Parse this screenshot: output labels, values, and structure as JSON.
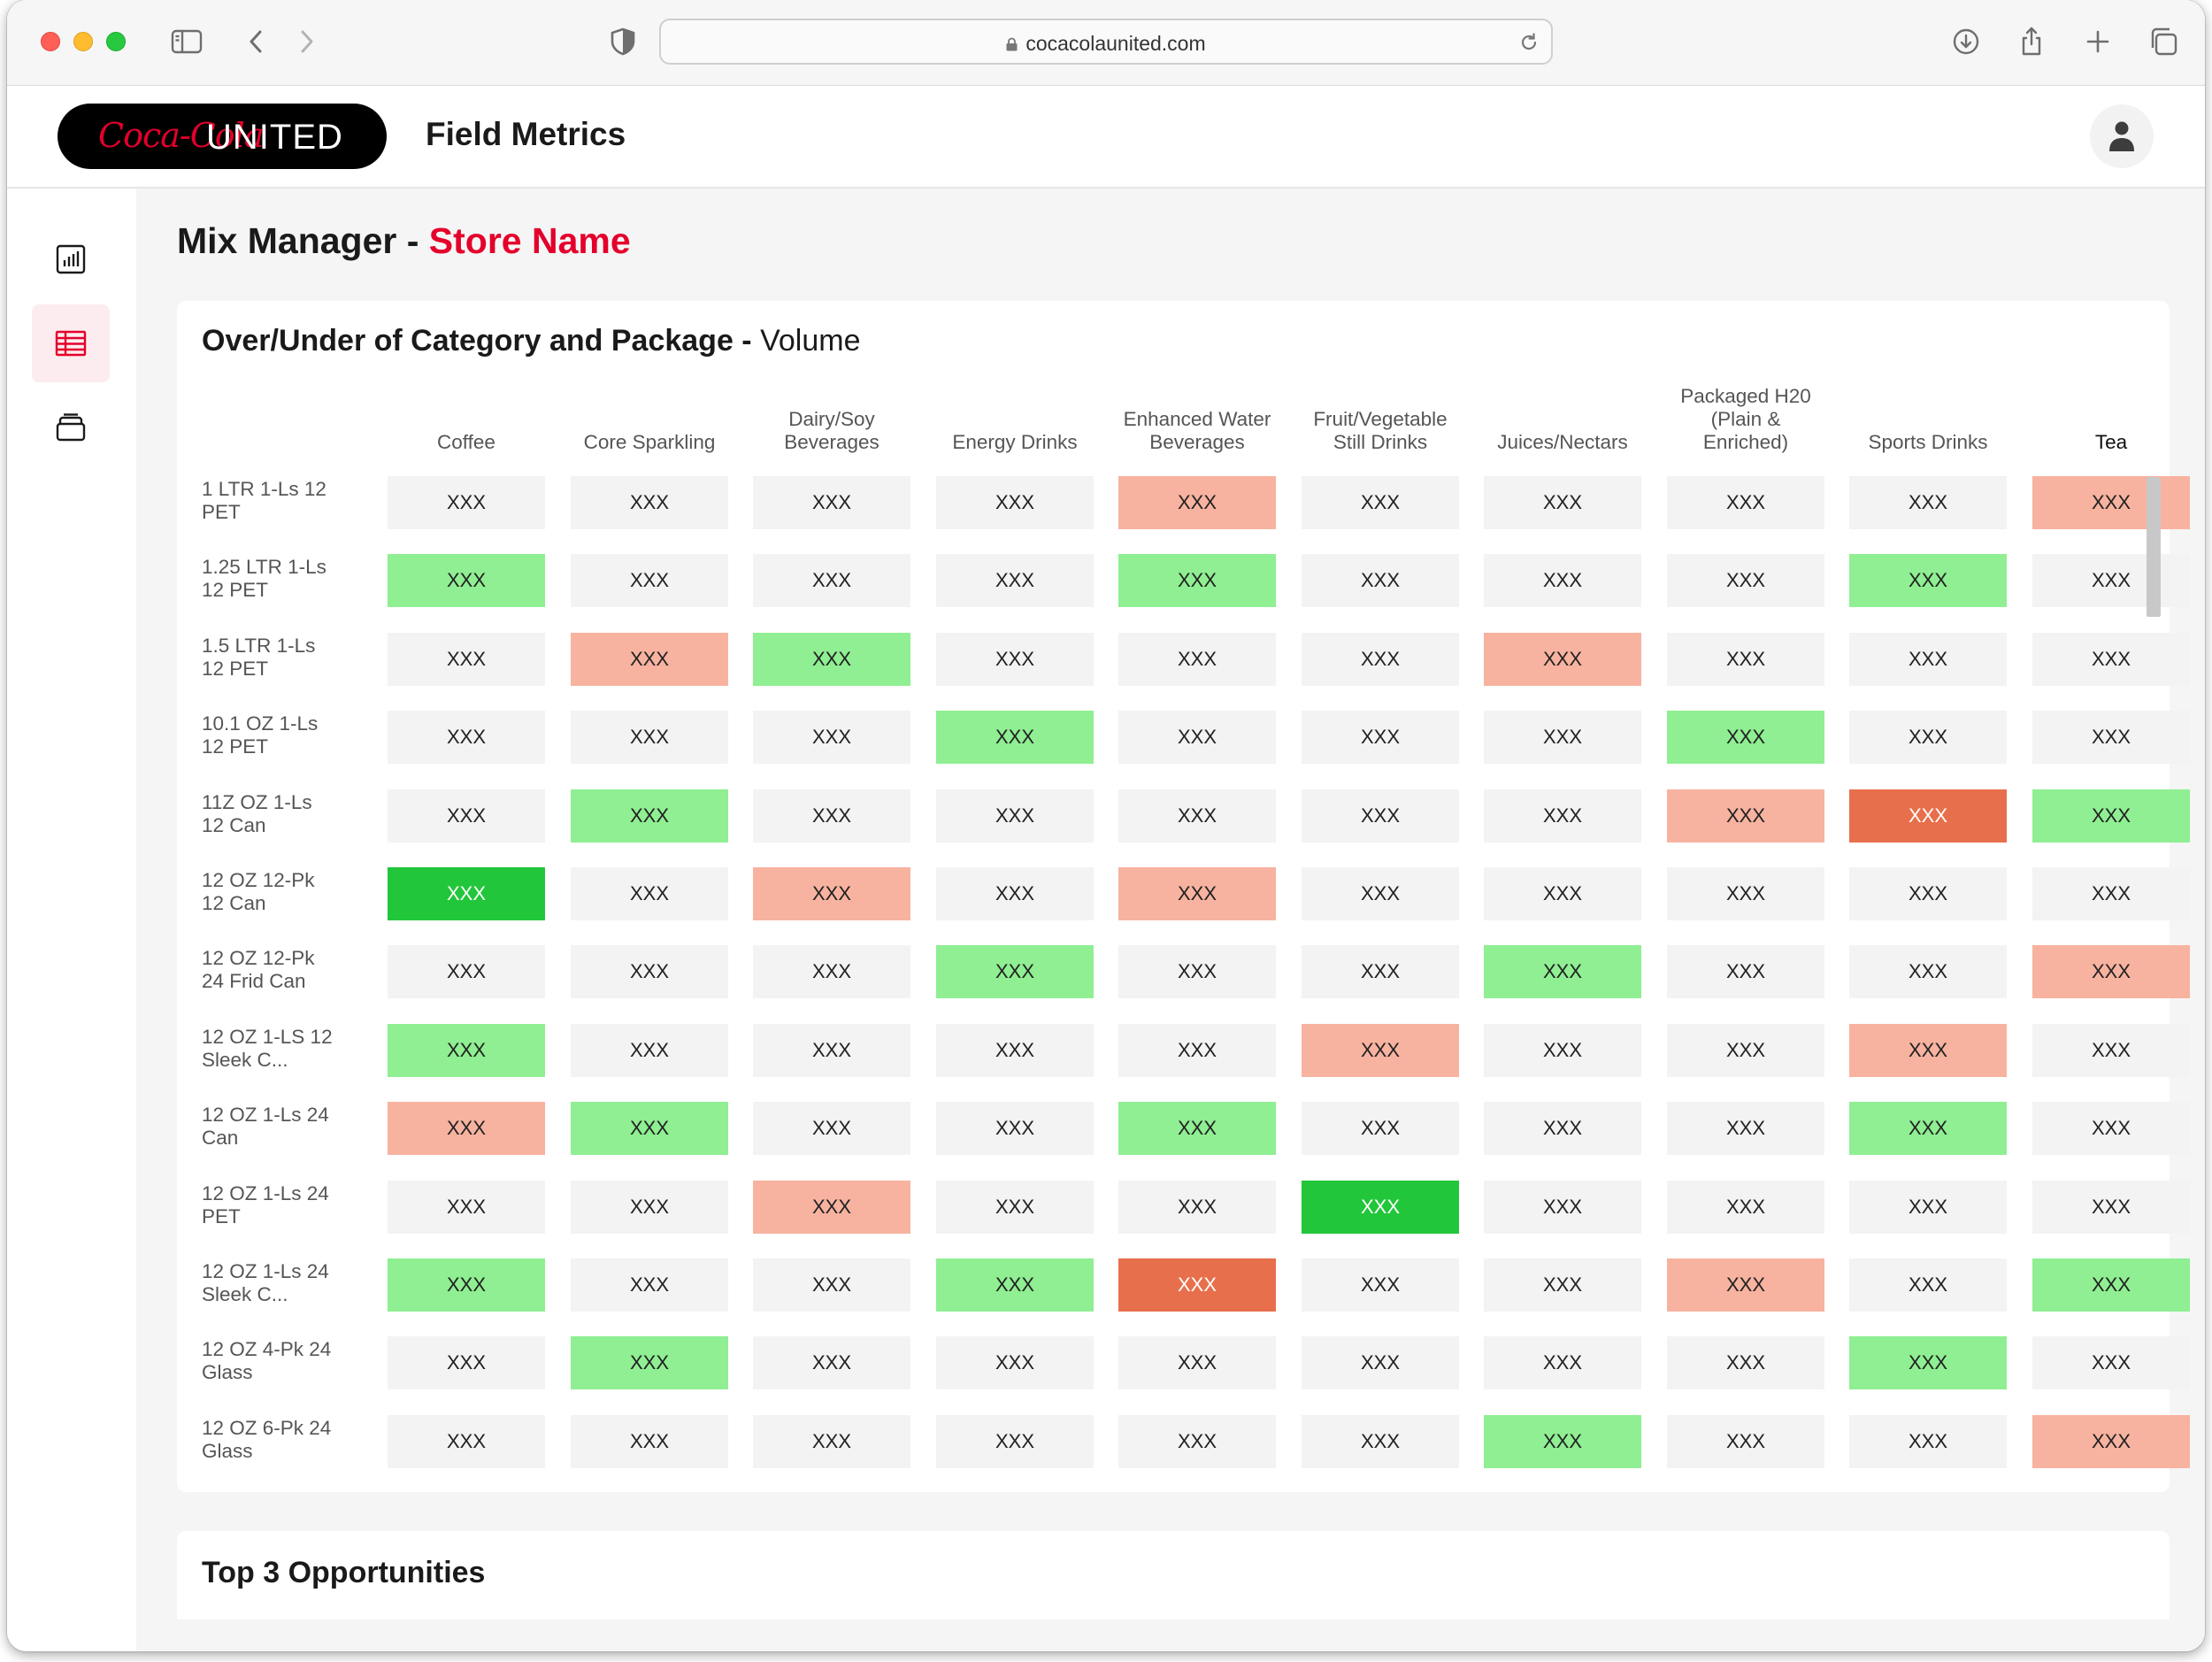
{
  "browser": {
    "url": "cocacolaunited.com"
  },
  "header": {
    "logo_script": "Coca-Cola",
    "logo_word": "UNITED",
    "app_title": "Field Metrics"
  },
  "sidebar": {
    "items": [
      {
        "icon": "bar-chart-icon",
        "active": false
      },
      {
        "icon": "table-icon",
        "active": true
      },
      {
        "icon": "stack-icon",
        "active": false
      }
    ]
  },
  "page": {
    "title": "Mix Manager -",
    "store": "Store Name"
  },
  "card": {
    "title_bold": "Over/Under of Category and Package -",
    "title_light": "Volume",
    "columns": [
      "Coffee",
      "Core Sparkling",
      "Dairy/Soy Beverages",
      "Energy Drinks",
      "Enhanced Water Beverages",
      "Fruit/Vegetable Still Drinks",
      "Juices/Nectars",
      "Packaged H20 (Plain & Enriched)",
      "Sports Drinks",
      "Tea"
    ],
    "rows": [
      {
        "label": "1 LTR 1-Ls 12 PET",
        "cells": [
          "XXX",
          "XXX",
          "XXX",
          "XXX",
          "XXX",
          "XXX",
          "XXX",
          "XXX",
          "XXX",
          "XXX"
        ],
        "status": [
          "n",
          "n",
          "n",
          "n",
          "p",
          "n",
          "n",
          "n",
          "n",
          "p"
        ]
      },
      {
        "label": "1.25 LTR 1-Ls 12 PET",
        "cells": [
          "XXX",
          "XXX",
          "XXX",
          "XXX",
          "XXX",
          "XXX",
          "XXX",
          "XXX",
          "XXX",
          "XXX"
        ],
        "status": [
          "g",
          "n",
          "n",
          "n",
          "g",
          "n",
          "n",
          "n",
          "g",
          "n"
        ]
      },
      {
        "label": "1.5 LTR 1-Ls 12 PET",
        "cells": [
          "XXX",
          "XXX",
          "XXX",
          "XXX",
          "XXX",
          "XXX",
          "XXX",
          "XXX",
          "XXX",
          "XXX"
        ],
        "status": [
          "n",
          "p",
          "g",
          "n",
          "n",
          "n",
          "p",
          "n",
          "n",
          "n"
        ]
      },
      {
        "label": "10.1 OZ 1-Ls 12 PET",
        "cells": [
          "XXX",
          "XXX",
          "XXX",
          "XXX",
          "XXX",
          "XXX",
          "XXX",
          "XXX",
          "XXX",
          "XXX"
        ],
        "status": [
          "n",
          "n",
          "n",
          "g",
          "n",
          "n",
          "n",
          "g",
          "n",
          "n"
        ]
      },
      {
        "label": "11Z OZ 1-Ls 12 Can",
        "cells": [
          "XXX",
          "XXX",
          "XXX",
          "XXX",
          "XXX",
          "XXX",
          "XXX",
          "XXX",
          "XXX",
          "XXX"
        ],
        "status": [
          "n",
          "g",
          "n",
          "n",
          "n",
          "n",
          "n",
          "p",
          "o",
          "g"
        ]
      },
      {
        "label": "12 OZ 12-Pk 12 Can",
        "cells": [
          "XXX",
          "XXX",
          "XXX",
          "XXX",
          "XXX",
          "XXX",
          "XXX",
          "XXX",
          "XXX",
          "XXX"
        ],
        "status": [
          "G",
          "n",
          "p",
          "n",
          "p",
          "n",
          "n",
          "n",
          "n",
          "n"
        ]
      },
      {
        "label": "12 OZ 12-Pk 24 Frid Can",
        "cells": [
          "XXX",
          "XXX",
          "XXX",
          "XXX",
          "XXX",
          "XXX",
          "XXX",
          "XXX",
          "XXX",
          "XXX"
        ],
        "status": [
          "n",
          "n",
          "n",
          "g",
          "n",
          "n",
          "g",
          "n",
          "n",
          "p"
        ]
      },
      {
        "label": "12 OZ 1-LS 12 Sleek C...",
        "cells": [
          "XXX",
          "XXX",
          "XXX",
          "XXX",
          "XXX",
          "XXX",
          "XXX",
          "XXX",
          "XXX",
          "XXX"
        ],
        "status": [
          "g",
          "n",
          "n",
          "n",
          "n",
          "p",
          "n",
          "n",
          "p",
          "n"
        ]
      },
      {
        "label": "12 OZ 1-Ls 24 Can",
        "cells": [
          "XXX",
          "XXX",
          "XXX",
          "XXX",
          "XXX",
          "XXX",
          "XXX",
          "XXX",
          "XXX",
          "XXX"
        ],
        "status": [
          "p",
          "g",
          "n",
          "n",
          "g",
          "n",
          "n",
          "n",
          "g",
          "n"
        ]
      },
      {
        "label": "12 OZ 1-Ls 24 PET",
        "cells": [
          "XXX",
          "XXX",
          "XXX",
          "XXX",
          "XXX",
          "XXX",
          "XXX",
          "XXX",
          "XXX",
          "XXX"
        ],
        "status": [
          "n",
          "n",
          "p",
          "n",
          "n",
          "G",
          "n",
          "n",
          "n",
          "n"
        ]
      },
      {
        "label": "12 OZ 1-Ls 24 Sleek C...",
        "cells": [
          "XXX",
          "XXX",
          "XXX",
          "XXX",
          "XXX",
          "XXX",
          "XXX",
          "XXX",
          "XXX",
          "XXX"
        ],
        "status": [
          "g",
          "n",
          "n",
          "g",
          "o",
          "n",
          "n",
          "p",
          "n",
          "g"
        ]
      },
      {
        "label": "12 OZ 4-Pk 24 Glass",
        "cells": [
          "XXX",
          "XXX",
          "XXX",
          "XXX",
          "XXX",
          "XXX",
          "XXX",
          "XXX",
          "XXX",
          "XXX"
        ],
        "status": [
          "n",
          "g",
          "n",
          "n",
          "n",
          "n",
          "n",
          "n",
          "g",
          "n"
        ]
      },
      {
        "label": "12 OZ 6-Pk 24 Glass",
        "cells": [
          "XXX",
          "XXX",
          "XXX",
          "XXX",
          "XXX",
          "XXX",
          "XXX",
          "XXX",
          "XXX",
          "XXX"
        ],
        "status": [
          "n",
          "n",
          "n",
          "n",
          "n",
          "n",
          "g",
          "n",
          "n",
          "p"
        ]
      }
    ]
  },
  "colors": {
    "brand_red": "#e4002b",
    "over_light": "#8fef92",
    "over_strong": "#22c63a",
    "under_light": "#f7b3a0",
    "under_strong": "#e86f4c",
    "neutral": "#f3f3f3"
  },
  "opportunities": {
    "title": "Top 3 Opportunities"
  }
}
